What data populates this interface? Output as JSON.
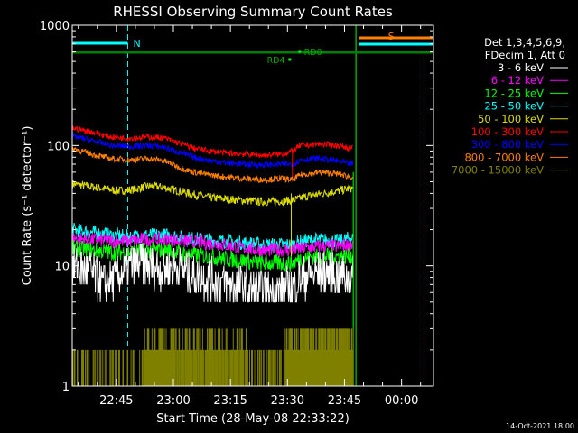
{
  "chart_data": {
    "type": "line",
    "title": "RHESSI Observing Summary Count Rates",
    "xlabel": "Start Time (28-May-08 22:33:22)",
    "ylabel": "Count Rate (s⁻¹ detector⁻¹)",
    "yscale": "log",
    "ylim": [
      1,
      1000
    ],
    "xlim_minutes": [
      0,
      95
    ],
    "y_ticks": [
      {
        "value": 1,
        "label": "1"
      },
      {
        "value": 10,
        "label": "10"
      },
      {
        "value": 100,
        "label": "100"
      },
      {
        "value": 1000,
        "label": "1000"
      }
    ],
    "x_ticks": [
      {
        "minute": 11.6,
        "label": "22:45"
      },
      {
        "minute": 26.6,
        "label": "23:00"
      },
      {
        "minute": 41.6,
        "label": "23:15"
      },
      {
        "minute": 56.6,
        "label": "23:30"
      },
      {
        "minute": 71.6,
        "label": "23:45"
      },
      {
        "minute": 86.6,
        "label": "00:00"
      }
    ],
    "legend_header": [
      "Det 1,3,4,5,6,9,",
      "FDecim 1, Att 0"
    ],
    "series": [
      {
        "name": "3 - 6 keV",
        "color": "#ffffff",
        "points": [
          [
            0,
            10
          ],
          [
            5,
            9
          ],
          [
            8,
            7
          ],
          [
            10,
            7.5
          ],
          [
            12,
            8
          ],
          [
            15,
            10
          ],
          [
            18,
            10.5
          ],
          [
            20,
            10
          ],
          [
            24,
            9.5
          ],
          [
            28,
            10
          ],
          [
            31,
            8.5
          ],
          [
            34,
            8
          ],
          [
            38,
            7.5
          ],
          [
            42,
            7
          ],
          [
            46,
            6.5
          ],
          [
            50,
            6
          ],
          [
            54,
            6.2
          ],
          [
            56,
            6.5
          ],
          [
            58,
            6.5
          ],
          [
            60,
            8
          ],
          [
            63,
            8.5
          ],
          [
            66,
            9
          ],
          [
            70,
            8.5
          ],
          [
            73,
            8
          ]
        ],
        "noise": 0.18
      },
      {
        "name": "6 - 12 keV",
        "color": "#ff00ff",
        "points": [
          [
            0,
            17
          ],
          [
            5,
            16.5
          ],
          [
            10,
            16
          ],
          [
            15,
            16
          ],
          [
            20,
            16.5
          ],
          [
            25,
            16.5
          ],
          [
            30,
            16
          ],
          [
            35,
            15.5
          ],
          [
            40,
            15
          ],
          [
            45,
            14
          ],
          [
            50,
            13.5
          ],
          [
            55,
            13.5
          ],
          [
            58,
            13.5
          ],
          [
            60,
            14
          ],
          [
            65,
            14.5
          ],
          [
            70,
            14.5
          ],
          [
            73,
            15
          ]
        ],
        "noise": 0.06
      },
      {
        "name": "12 - 25 keV",
        "color": "#00ff00",
        "points": [
          [
            0,
            14
          ],
          [
            5,
            13.5
          ],
          [
            10,
            13
          ],
          [
            15,
            13
          ],
          [
            20,
            13.5
          ],
          [
            25,
            13.5
          ],
          [
            30,
            12.5
          ],
          [
            35,
            12
          ],
          [
            40,
            11.5
          ],
          [
            45,
            11
          ],
          [
            50,
            10.5
          ],
          [
            55,
            10.5
          ],
          [
            58,
            10.5
          ],
          [
            60,
            11.5
          ],
          [
            65,
            12
          ],
          [
            70,
            12
          ],
          [
            73,
            12
          ]
        ],
        "noise": 0.07
      },
      {
        "name": "25 - 50 keV",
        "color": "#00ffff",
        "points": [
          [
            0,
            20
          ],
          [
            5,
            19
          ],
          [
            10,
            18
          ],
          [
            15,
            17.5
          ],
          [
            20,
            18
          ],
          [
            25,
            18
          ],
          [
            30,
            17
          ],
          [
            35,
            16.5
          ],
          [
            40,
            16
          ],
          [
            45,
            15.5
          ],
          [
            50,
            15
          ],
          [
            55,
            15
          ],
          [
            58,
            15
          ],
          [
            60,
            16
          ],
          [
            65,
            16.5
          ],
          [
            70,
            16
          ],
          [
            73,
            17
          ]
        ],
        "noise": 0.06
      },
      {
        "name": "50 - 100 keV",
        "color": "#dddd00",
        "points": [
          [
            0,
            48
          ],
          [
            4,
            46
          ],
          [
            8,
            44
          ],
          [
            12,
            42
          ],
          [
            16,
            43
          ],
          [
            20,
            46
          ],
          [
            24,
            45
          ],
          [
            28,
            42
          ],
          [
            32,
            39
          ],
          [
            36,
            37
          ],
          [
            40,
            36
          ],
          [
            45,
            35
          ],
          [
            50,
            34
          ],
          [
            55,
            34.5
          ],
          [
            58,
            35
          ],
          [
            62,
            38
          ],
          [
            66,
            40
          ],
          [
            70,
            42
          ],
          [
            73,
            44
          ]
        ],
        "noise": 0.035
      },
      {
        "name": "100 - 300 keV",
        "color": "#ff0000",
        "points": [
          [
            0,
            140
          ],
          [
            5,
            130
          ],
          [
            10,
            118
          ],
          [
            15,
            115
          ],
          [
            20,
            118
          ],
          [
            24,
            116
          ],
          [
            28,
            105
          ],
          [
            32,
            95
          ],
          [
            36,
            90
          ],
          [
            40,
            87
          ],
          [
            45,
            85
          ],
          [
            50,
            83
          ],
          [
            55,
            85
          ],
          [
            58,
            90
          ],
          [
            60,
            100
          ],
          [
            65,
            103
          ],
          [
            70,
            100
          ],
          [
            73,
            95
          ]
        ],
        "noise": 0.025
      },
      {
        "name": "300 - 800 keV",
        "color": "#0000ff",
        "points": [
          [
            0,
            120
          ],
          [
            5,
            110
          ],
          [
            10,
            100
          ],
          [
            15,
            98
          ],
          [
            20,
            100
          ],
          [
            24,
            97
          ],
          [
            28,
            88
          ],
          [
            32,
            80
          ],
          [
            36,
            75
          ],
          [
            40,
            72
          ],
          [
            45,
            70
          ],
          [
            50,
            69
          ],
          [
            55,
            70
          ],
          [
            58,
            70
          ],
          [
            60,
            76
          ],
          [
            65,
            78
          ],
          [
            70,
            74
          ],
          [
            73,
            70
          ]
        ],
        "noise": 0.025
      },
      {
        "name": "800 - 7000 keV",
        "color": "#ff8000",
        "points": [
          [
            0,
            95
          ],
          [
            5,
            85
          ],
          [
            10,
            78
          ],
          [
            15,
            76
          ],
          [
            20,
            78
          ],
          [
            24,
            75
          ],
          [
            28,
            66
          ],
          [
            32,
            60
          ],
          [
            36,
            57
          ],
          [
            40,
            55
          ],
          [
            45,
            53
          ],
          [
            50,
            52
          ],
          [
            55,
            53
          ],
          [
            58,
            52
          ],
          [
            60,
            57
          ],
          [
            65,
            60
          ],
          [
            70,
            58
          ],
          [
            73,
            55
          ]
        ],
        "noise": 0.025
      },
      {
        "name": "7000 - 15000 keV",
        "color": "#808000",
        "points": [],
        "noise": 0
      }
    ],
    "annotations": [
      {
        "label": "N",
        "minute": 14.6,
        "color": "#00ffff"
      },
      {
        "label": "S",
        "minute": 84.0,
        "color": "#ff8000"
      },
      {
        "label": "RD0",
        "minute": 60.0,
        "color": "#00aa00"
      },
      {
        "label": "RD4",
        "minute": 55.0,
        "color": "#00aa00"
      }
    ]
  },
  "timestamp": "14-Oct-2021 18:00"
}
